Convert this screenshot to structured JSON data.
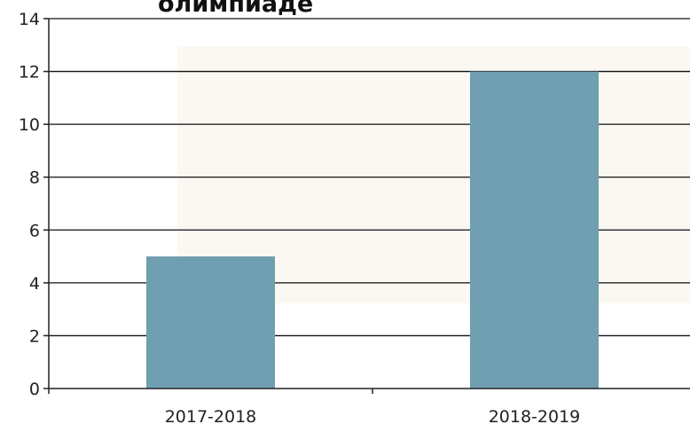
{
  "chart_data": {
    "type": "bar",
    "title": "олимпиаде",
    "categories": [
      "2017-2018",
      "2018-2019"
    ],
    "values": [
      5,
      12
    ],
    "xlabel": "",
    "ylabel": "",
    "ylim": [
      0,
      14
    ],
    "yticks": [
      "0",
      "2",
      "4",
      "6",
      "8",
      "10",
      "12",
      "14"
    ],
    "grid": true,
    "legend": "none",
    "colors": {
      "bar": "#6f9fb1",
      "plot_background": "#fbf8f2",
      "grid": "#111111",
      "axis": "#222222"
    }
  }
}
